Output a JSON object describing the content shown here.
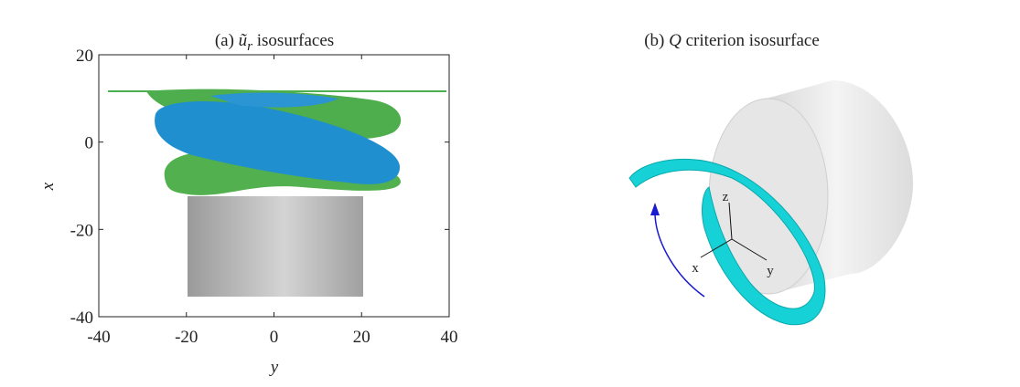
{
  "panels": [
    {
      "title": {
        "prefix": "(a) ",
        "symbol": "ũ",
        "subscript": "r",
        "suffix": " isosurfaces"
      },
      "xlabel": "y",
      "ylabel": "x",
      "xlim": [
        -40,
        40
      ],
      "ylim": [
        -40,
        20
      ],
      "xticks": [
        -40,
        -20,
        0,
        20,
        40
      ],
      "yticks": [
        -40,
        -20,
        0,
        20
      ]
    },
    {
      "title": {
        "prefix": "(b) ",
        "symbol": "Q",
        "suffix": " criterion isosurface"
      },
      "axis_labels": [
        "z",
        "x",
        "y"
      ]
    }
  ]
}
